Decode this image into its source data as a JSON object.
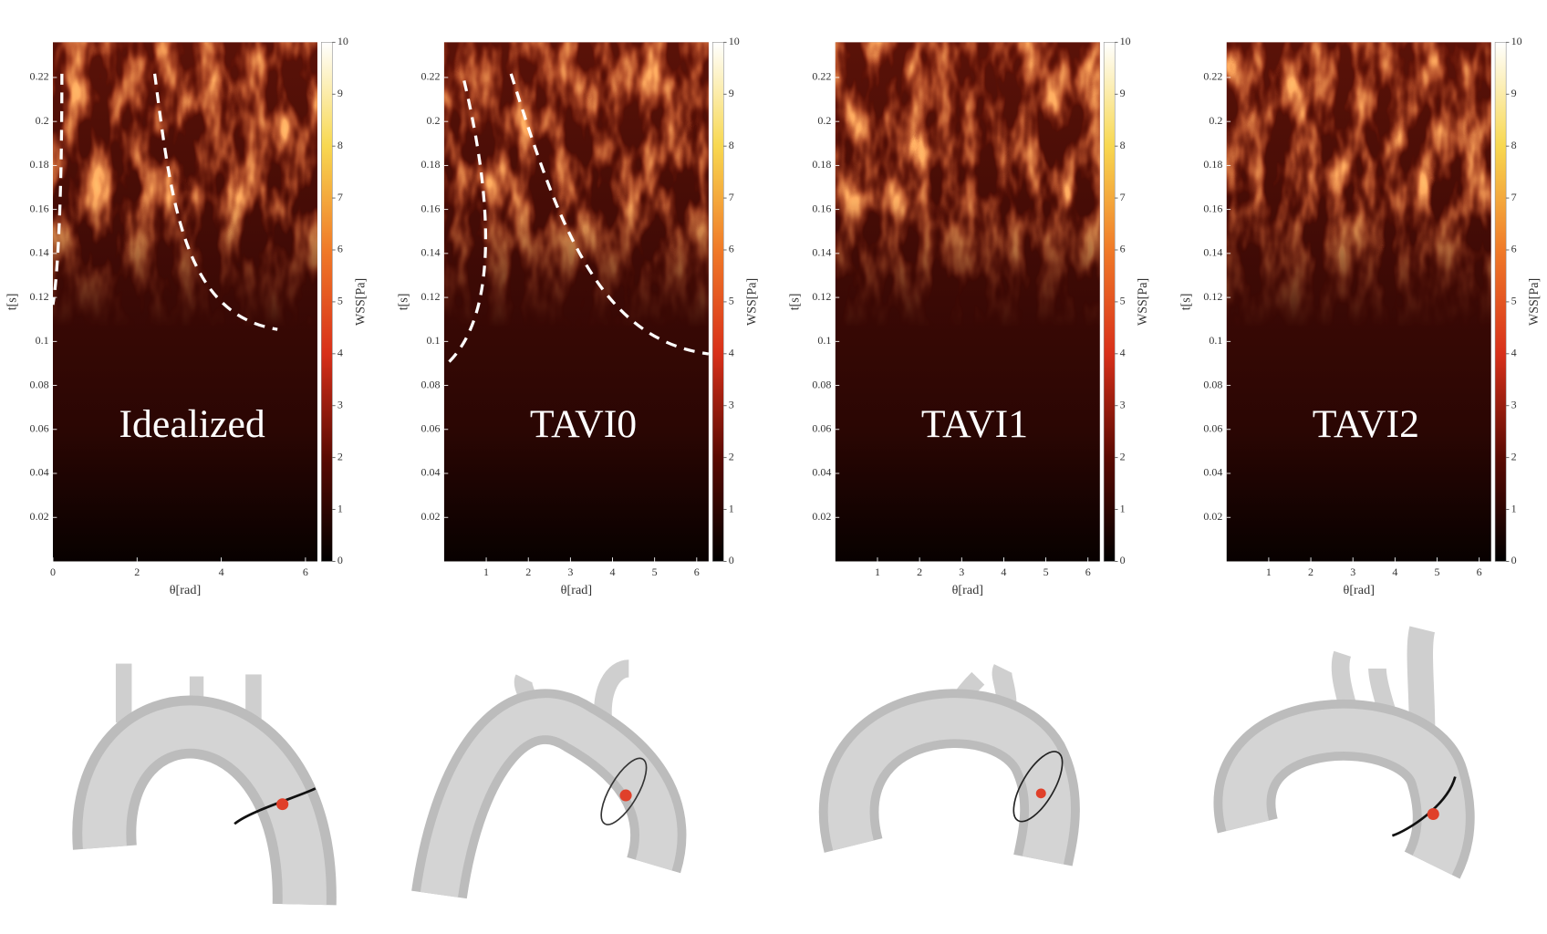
{
  "chart_data": [
    {
      "type": "heatmap",
      "label": "Idealized",
      "xlabel": "θ[rad]",
      "ylabel": "t[s]",
      "xlim": [
        0,
        6.283
      ],
      "xticks": [
        0,
        2,
        4,
        6
      ],
      "ylim": [
        0,
        0.236
      ],
      "yticks": [
        0.02,
        0.04,
        0.06,
        0.08,
        0.1,
        0.12,
        0.14,
        0.16,
        0.18,
        0.2,
        0.22
      ],
      "colorbar_label": "WSS[Pa]",
      "clim": [
        0,
        10
      ],
      "cticks": [
        0,
        1,
        2,
        3,
        4,
        5,
        6,
        7,
        8,
        9,
        10
      ]
    },
    {
      "type": "heatmap",
      "label": "TAVI0",
      "xlabel": "θ[rad]",
      "ylabel": "t[s]",
      "xlim": [
        0,
        6.283
      ],
      "xticks": [
        1,
        2,
        3,
        4,
        5,
        6
      ],
      "ylim": [
        0,
        0.236
      ],
      "yticks": [
        0.02,
        0.04,
        0.06,
        0.08,
        0.1,
        0.12,
        0.14,
        0.16,
        0.18,
        0.2,
        0.22
      ],
      "colorbar_label": "WSS[Pa]",
      "clim": [
        0,
        10
      ],
      "cticks": [
        0,
        1,
        2,
        3,
        4,
        5,
        6,
        7,
        8,
        9,
        10
      ]
    },
    {
      "type": "heatmap",
      "label": "TAVI1",
      "xlabel": "θ[rad]",
      "ylabel": "t[s]",
      "xlim": [
        0,
        6.283
      ],
      "xticks": [
        1,
        2,
        3,
        4,
        5,
        6
      ],
      "ylim": [
        0,
        0.236
      ],
      "yticks": [
        0.02,
        0.04,
        0.06,
        0.08,
        0.1,
        0.12,
        0.14,
        0.16,
        0.18,
        0.2,
        0.22
      ],
      "colorbar_label": "WSS[Pa]",
      "clim": [
        0,
        10
      ],
      "cticks": [
        0,
        1,
        2,
        3,
        4,
        5,
        6,
        7,
        8,
        9,
        10
      ]
    },
    {
      "type": "heatmap",
      "label": "TAVI2",
      "xlabel": "θ[rad]",
      "ylabel": "t[s]",
      "xlim": [
        0,
        6.283
      ],
      "xticks": [
        1,
        2,
        3,
        4,
        5,
        6
      ],
      "ylim": [
        0,
        0.236
      ],
      "yticks": [
        0.02,
        0.04,
        0.06,
        0.08,
        0.1,
        0.12,
        0.14,
        0.16,
        0.18,
        0.2,
        0.22
      ],
      "colorbar_label": "WSS[Pa]",
      "clim": [
        0,
        10
      ],
      "cticks": [
        0,
        1,
        2,
        3,
        4,
        5,
        6,
        7,
        8,
        9,
        10
      ]
    }
  ]
}
